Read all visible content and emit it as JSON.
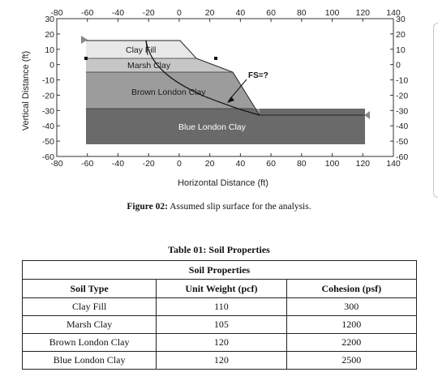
{
  "figure": {
    "x_ticks": [
      "-80",
      "-60",
      "-40",
      "-20",
      "0",
      "20",
      "40",
      "60",
      "80",
      "100",
      "120",
      "140"
    ],
    "y_ticks": [
      "30",
      "20",
      "10",
      "0",
      "-10",
      "-20",
      "-30",
      "-40",
      "-50",
      "-60"
    ],
    "x_axis_title": "Horizontal Distance (ft)",
    "y_axis_title": "Vertical Distance (ft)",
    "layers": [
      "Clay Fill",
      "Marsh Clay",
      "Brown London Clay",
      "Blue London Clay"
    ],
    "annotation": "FS=?",
    "colors": {
      "clay_fill": "#e8e8e8",
      "marsh_clay": "#c6c6c6",
      "brown_london_clay": "#9c9c9c",
      "blue_london_clay": "#6a6a6a"
    }
  },
  "caption": {
    "label": "Figure 02:",
    "text": " Assumed slip surface for the analysis."
  },
  "table": {
    "title": "Table 01: Soil Properties",
    "group_header": "Soil Properties",
    "columns": [
      "Soil Type",
      "Unit Weight (pcf)",
      "Cohesion (psf)"
    ],
    "rows": [
      [
        "Clay Fill",
        "110",
        "300"
      ],
      [
        "Marsh Clay",
        "105",
        "1200"
      ],
      [
        "Brown London Clay",
        "120",
        "2200"
      ],
      [
        "Blue London Clay",
        "120",
        "2500"
      ]
    ]
  }
}
